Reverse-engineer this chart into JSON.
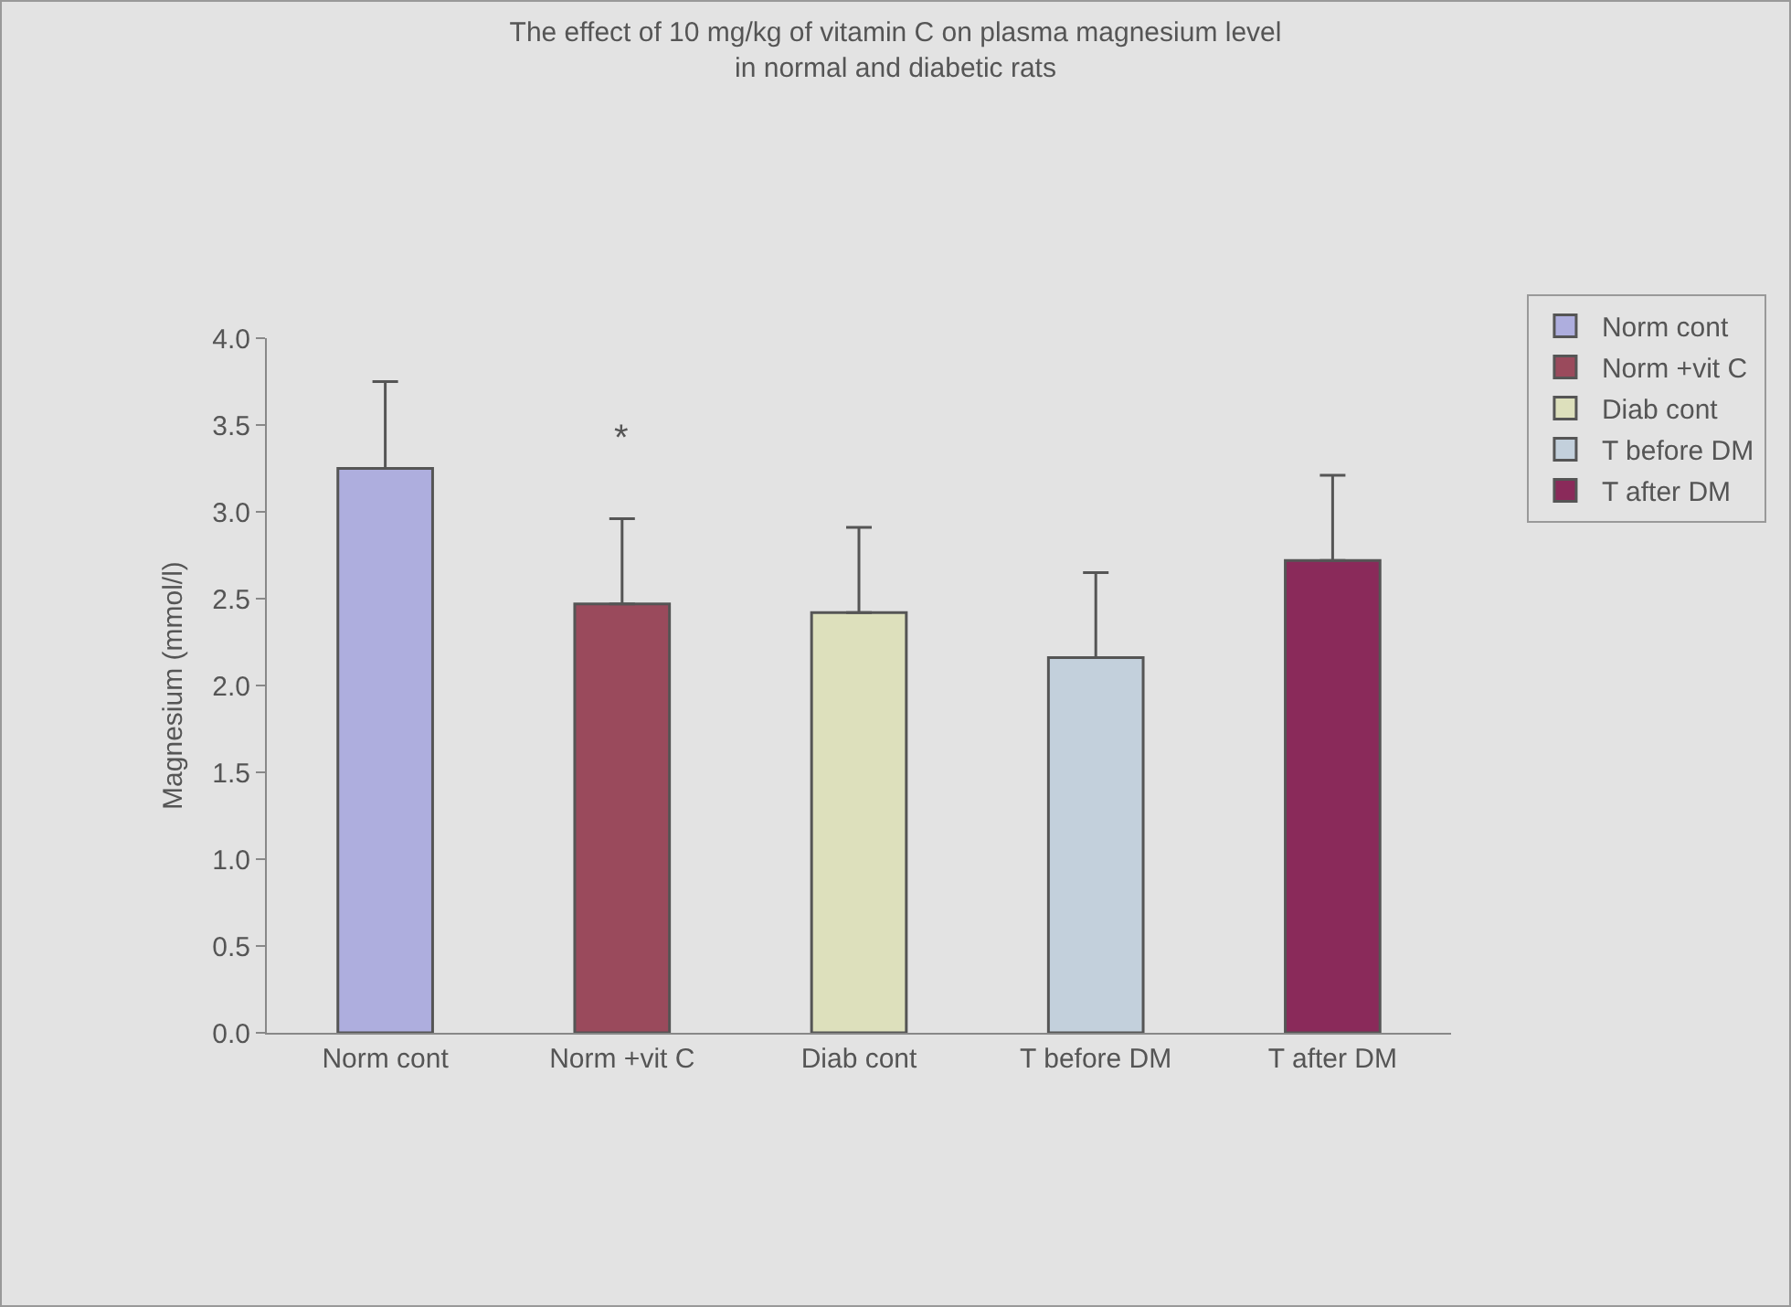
{
  "chart_data": {
    "type": "bar",
    "title": "The effect of 10 mg/kg of vitamin C on plasma magnesium level\nin normal and diabetic rats",
    "ylabel": "Magnesium (mmol/l)",
    "categories": [
      "Norm cont",
      "Norm +vit C",
      "Diab cont",
      "T before DM",
      "T after DM"
    ],
    "series": [
      {
        "name": "Norm cont",
        "color": "#aeaede",
        "values": [
          3.25,
          null,
          null,
          null,
          null
        ],
        "errors": [
          0.5,
          null,
          null,
          null,
          null
        ]
      },
      {
        "name": "Norm +vit C",
        "color": "#9a4a5c",
        "values": [
          null,
          2.47,
          null,
          null,
          null
        ],
        "errors": [
          null,
          0.49,
          null,
          null,
          null
        ]
      },
      {
        "name": "Diab cont",
        "color": "#dde0bc",
        "values": [
          null,
          null,
          2.42,
          null,
          null
        ],
        "errors": [
          null,
          null,
          0.49,
          null,
          null
        ]
      },
      {
        "name": "T before DM",
        "color": "#c3d0dc",
        "values": [
          null,
          null,
          null,
          2.16,
          null
        ],
        "errors": [
          null,
          null,
          null,
          0.49,
          null
        ]
      },
      {
        "name": "T after DM",
        "color": "#8a2a5a",
        "values": [
          null,
          null,
          null,
          null,
          2.72
        ],
        "errors": [
          null,
          null,
          null,
          null,
          0.49
        ]
      }
    ],
    "annotations": [
      "*"
    ],
    "ylim": [
      0,
      4
    ],
    "yticks": [
      {
        "value": 0,
        "label": "0.0"
      },
      {
        "value": 0.5,
        "label": "0.5"
      },
      {
        "value": 1,
        "label": "1.0"
      },
      {
        "value": 1.5,
        "label": "1.5"
      },
      {
        "value": 2,
        "label": "2.0"
      },
      {
        "value": 2.5,
        "label": "2.5"
      },
      {
        "value": 3,
        "label": "3.0"
      },
      {
        "value": 3.5,
        "label": "3.5"
      },
      {
        "value": 4,
        "label": "4.0"
      }
    ],
    "grid": false,
    "legend": "right"
  }
}
